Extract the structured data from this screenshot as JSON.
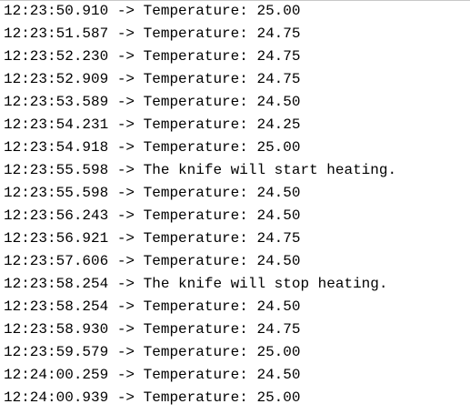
{
  "log": [
    {
      "time": "12:23:50.910",
      "arrow": "->",
      "message": "Temperature: 25.00"
    },
    {
      "time": "12:23:51.587",
      "arrow": "->",
      "message": "Temperature: 24.75"
    },
    {
      "time": "12:23:52.230",
      "arrow": "->",
      "message": "Temperature: 24.75"
    },
    {
      "time": "12:23:52.909",
      "arrow": "->",
      "message": "Temperature: 24.75"
    },
    {
      "time": "12:23:53.589",
      "arrow": "->",
      "message": "Temperature: 24.50"
    },
    {
      "time": "12:23:54.231",
      "arrow": "->",
      "message": "Temperature: 24.25"
    },
    {
      "time": "12:23:54.918",
      "arrow": "->",
      "message": "Temperature: 25.00"
    },
    {
      "time": "12:23:55.598",
      "arrow": "->",
      "message": "The knife will start heating."
    },
    {
      "time": "12:23:55.598",
      "arrow": "->",
      "message": "Temperature: 24.50"
    },
    {
      "time": "12:23:56.243",
      "arrow": "->",
      "message": "Temperature: 24.50"
    },
    {
      "time": "12:23:56.921",
      "arrow": "->",
      "message": "Temperature: 24.75"
    },
    {
      "time": "12:23:57.606",
      "arrow": "->",
      "message": "Temperature: 24.50"
    },
    {
      "time": "12:23:58.254",
      "arrow": "->",
      "message": "The knife will stop heating."
    },
    {
      "time": "12:23:58.254",
      "arrow": "->",
      "message": "Temperature: 24.50"
    },
    {
      "time": "12:23:58.930",
      "arrow": "->",
      "message": "Temperature: 24.75"
    },
    {
      "time": "12:23:59.579",
      "arrow": "->",
      "message": "Temperature: 25.00"
    },
    {
      "time": "12:24:00.259",
      "arrow": "->",
      "message": "Temperature: 24.50"
    },
    {
      "time": "12:24:00.939",
      "arrow": "->",
      "message": "Temperature: 25.00"
    }
  ]
}
